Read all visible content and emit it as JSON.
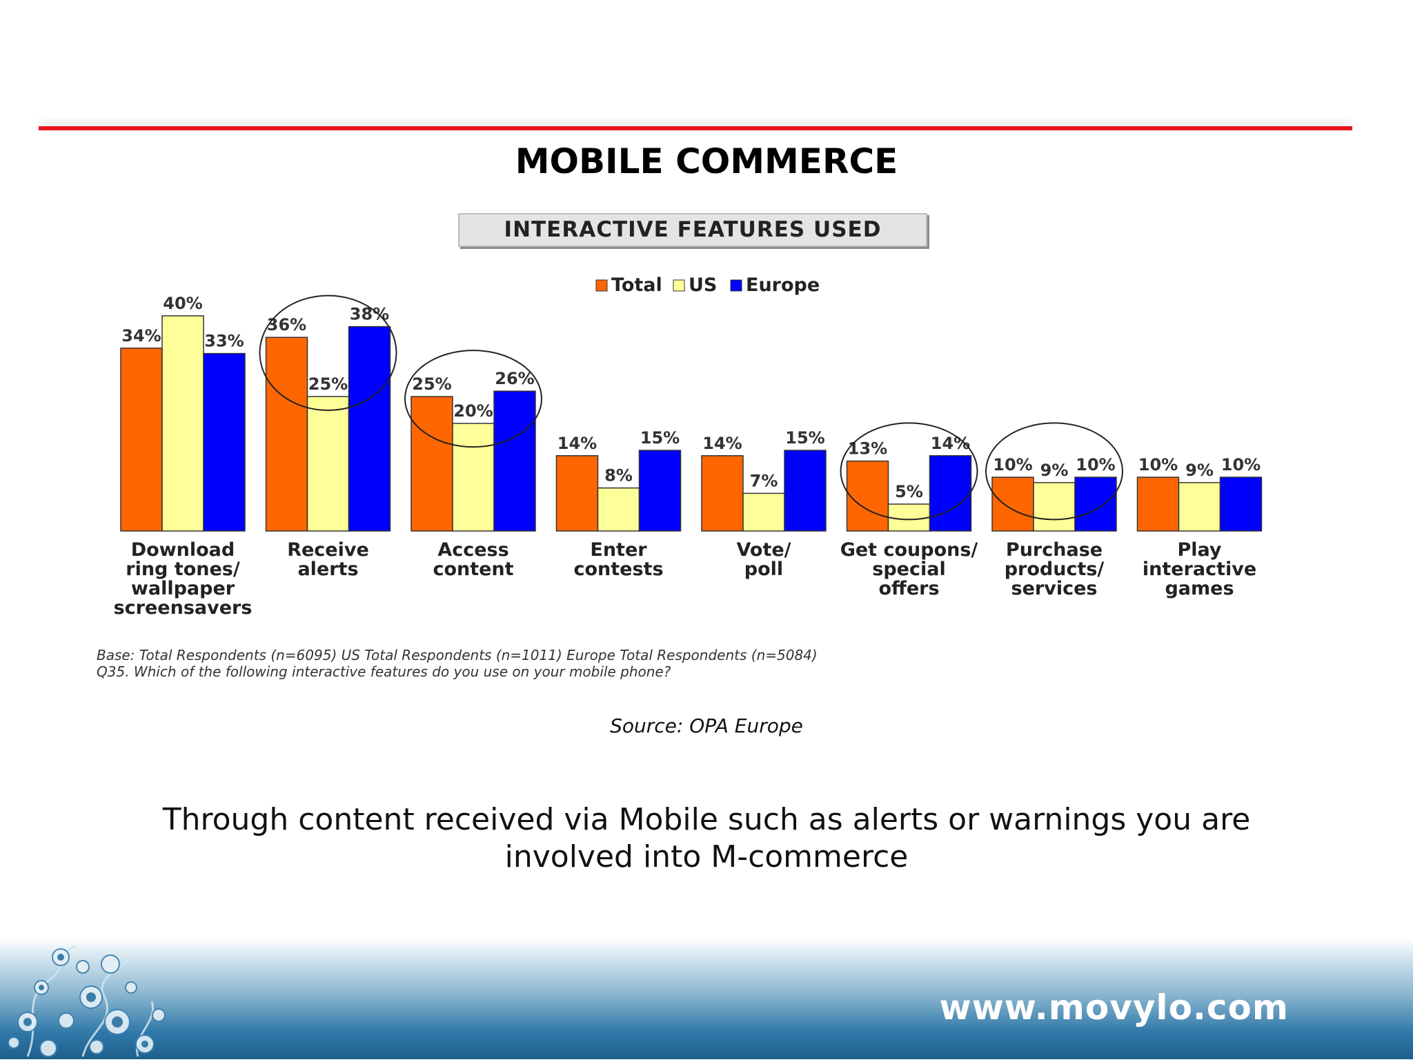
{
  "slide": {
    "title": "MOBILE COMMERCE",
    "chart_box_title": "INTERACTIVE FEATURES USED",
    "base_note": "Base: Total Respondents (n=6095)  US Total Respondents (n=1011)  Europe Total Respondents (n=5084)",
    "question_note": "Q35. Which of the following interactive features do you use on your mobile phone?",
    "source": "Source: OPA Europe",
    "caption_line1": "Through content received via Mobile such as alerts or warnings you are",
    "caption_line2": "involved into M-commerce",
    "footer_url": "www.movylo.com"
  },
  "colors": {
    "accent_red": "#e8141b",
    "total": "#ff6600",
    "us": "#ffff99",
    "europe": "#0000ff"
  },
  "chart_data": {
    "type": "bar",
    "title": "INTERACTIVE FEATURES USED",
    "categories": [
      [
        "Download",
        "ring tones/",
        "wallpaper",
        "screensavers"
      ],
      [
        "Receive",
        "alerts"
      ],
      [
        "Access",
        "content"
      ],
      [
        "Enter",
        "contests"
      ],
      [
        "Vote/",
        "poll"
      ],
      [
        "Get coupons/",
        "special",
        "offers"
      ],
      [
        "Purchase",
        "products/",
        "services"
      ],
      [
        "Play",
        "interactive",
        "games"
      ]
    ],
    "series": [
      {
        "name": "Total",
        "color": "#ff6600",
        "values": [
          34,
          36,
          25,
          14,
          14,
          13,
          10,
          10
        ]
      },
      {
        "name": "US",
        "color": "#ffff99",
        "values": [
          40,
          25,
          20,
          8,
          7,
          5,
          9,
          9
        ]
      },
      {
        "name": "Europe",
        "color": "#0000ff",
        "values": [
          33,
          38,
          26,
          15,
          15,
          14,
          10,
          10
        ]
      }
    ],
    "unit": "%",
    "legend_position": "top-center",
    "highlighted_categories": [
      1,
      2,
      5,
      6
    ],
    "ylim": [
      0,
      42
    ],
    "grid": false
  }
}
